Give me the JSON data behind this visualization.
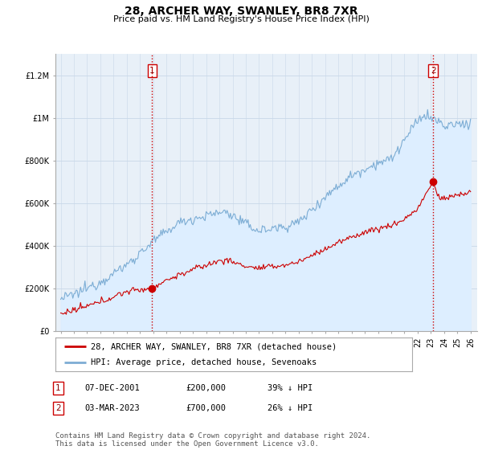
{
  "title": "28, ARCHER WAY, SWANLEY, BR8 7XR",
  "subtitle": "Price paid vs. HM Land Registry's House Price Index (HPI)",
  "ylim": [
    0,
    1300000
  ],
  "yticks": [
    0,
    200000,
    400000,
    600000,
    800000,
    1000000,
    1200000
  ],
  "ytick_labels": [
    "£0",
    "£200K",
    "£400K",
    "£600K",
    "£800K",
    "£1M",
    "£1.2M"
  ],
  "hpi_color": "#7dadd4",
  "hpi_fill_color": "#ddeeff",
  "price_color": "#cc0000",
  "sale1_year": 2001.92,
  "sale1_price": 200000,
  "sale2_year": 2023.17,
  "sale2_price": 700000,
  "vline_color": "#cc0000",
  "grid_color": "#c8d8e8",
  "bg_color": "#e8f0f8",
  "legend_label_red": "28, ARCHER WAY, SWANLEY, BR8 7XR (detached house)",
  "legend_label_blue": "HPI: Average price, detached house, Sevenoaks",
  "note1_date": "07-DEC-2001",
  "note1_price": "£200,000",
  "note1_hpi": "39% ↓ HPI",
  "note2_date": "03-MAR-2023",
  "note2_price": "£700,000",
  "note2_hpi": "26% ↓ HPI",
  "footnote": "Contains HM Land Registry data © Crown copyright and database right 2024.\nThis data is licensed under the Open Government Licence v3.0.",
  "title_fontsize": 10,
  "subtitle_fontsize": 8,
  "tick_fontsize": 7,
  "legend_fontsize": 8,
  "note_fontsize": 8,
  "footnote_fontsize": 6.5
}
